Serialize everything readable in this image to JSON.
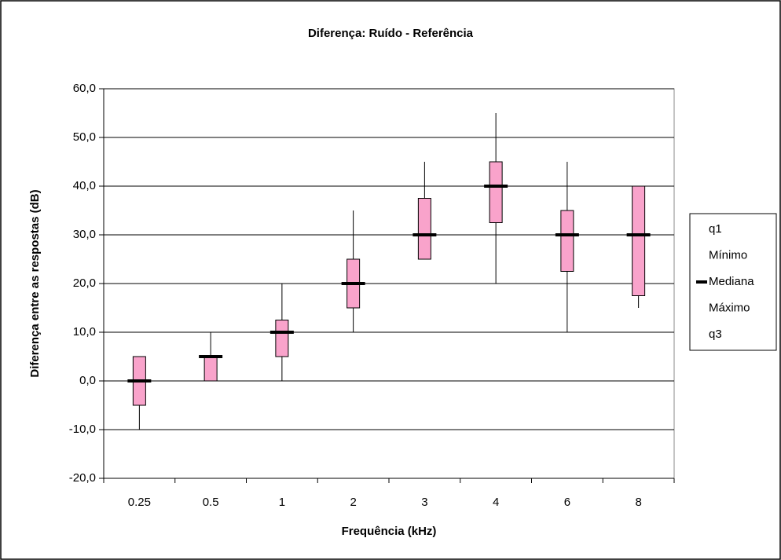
{
  "chart_data": {
    "type": "box",
    "title": "Diferença: Ruído - Referência",
    "x_label": "Frequência (kHz)",
    "y_label": "Diferença entre as respostas (dB)",
    "categories": [
      "0.25",
      "0.5",
      "1",
      "2",
      "3",
      "4",
      "6",
      "8"
    ],
    "series": [
      {
        "name": "q1",
        "values": [
          -5,
          0,
          5,
          15,
          25,
          32.5,
          22.5,
          17.5
        ]
      },
      {
        "name": "Mínimo",
        "values": [
          -10,
          0,
          0,
          10,
          25,
          20,
          10,
          15
        ]
      },
      {
        "name": "Mediana",
        "color": "#000000",
        "values": [
          0,
          5,
          10,
          20,
          30,
          40,
          30,
          30
        ]
      },
      {
        "name": "Máximo",
        "values": [
          5,
          10,
          20,
          35,
          45,
          55,
          45,
          40
        ]
      },
      {
        "name": "q3",
        "values": [
          5,
          5,
          12.5,
          25,
          37.5,
          45,
          35,
          40
        ]
      }
    ],
    "box_color": "#f9a3cb",
    "ylim": [
      -20,
      60
    ],
    "yticks": [
      {
        "value": -20,
        "label": "-20,0"
      },
      {
        "value": -10,
        "label": "-10,0"
      },
      {
        "value": 0,
        "label": "0,0"
      },
      {
        "value": 10,
        "label": "10,0"
      },
      {
        "value": 20,
        "label": "20,0"
      },
      {
        "value": 30,
        "label": "30,0"
      },
      {
        "value": 40,
        "label": "40,0"
      },
      {
        "value": 50,
        "label": "50,0"
      },
      {
        "value": 60,
        "label": "60,0"
      }
    ],
    "grid": true,
    "legend": "right"
  }
}
